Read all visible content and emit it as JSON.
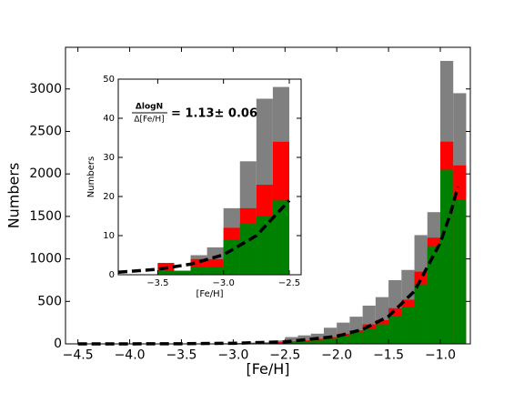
{
  "chart_data": [
    {
      "type": "histogram",
      "xlabel": "[Fe/H]",
      "ylabel": "Numbers",
      "bins": [
        -4.125,
        -4.0,
        -3.875,
        -3.75,
        -3.625,
        -3.5,
        -3.375,
        -3.25,
        -3.125,
        -3.0,
        -2.875,
        -2.75,
        -2.625,
        -2.5,
        -2.375,
        -2.25,
        -2.125,
        -2.0,
        -1.875,
        -1.75,
        -1.625,
        -1.5,
        -1.375,
        -1.25,
        -1.125,
        -1.0,
        -0.875,
        -0.75
      ],
      "series": [
        {
          "color": "#808080",
          "values": [
            1,
            2,
            1,
            2,
            3,
            3,
            2,
            5,
            7,
            10,
            15,
            20,
            40,
            80,
            100,
            120,
            190,
            250,
            320,
            450,
            550,
            750,
            870,
            1280,
            1550,
            3330,
            2950
          ]
        },
        {
          "color": "#ff0000",
          "values": [
            1,
            1,
            1,
            1,
            2,
            3,
            1,
            4,
            4,
            6,
            8,
            10,
            20,
            30,
            40,
            60,
            80,
            120,
            160,
            230,
            280,
            420,
            520,
            850,
            1250,
            2380,
            2100
          ]
        },
        {
          "color": "#008000",
          "values": [
            0,
            1,
            0,
            1,
            1,
            1,
            1,
            2,
            2,
            3,
            5,
            5,
            10,
            20,
            30,
            40,
            60,
            90,
            130,
            180,
            230,
            330,
            430,
            700,
            1150,
            2050,
            1700
          ]
        }
      ],
      "lines": [
        {
          "color": "#000000",
          "x": [
            -4.5,
            -4.0,
            -3.5,
            -3.0,
            -2.5,
            -2.0,
            -1.75,
            -1.5,
            -1.25,
            -1.0,
            -0.9,
            -0.83
          ],
          "values": [
            0.1,
            0.5,
            2,
            7,
            24,
            88,
            170,
            324,
            620,
            1190,
            1540,
            1850
          ]
        }
      ],
      "xlim": [
        -4.62,
        -0.71
      ],
      "ylim": [
        0,
        3490
      ],
      "xticks": [
        {
          "value": -4.5,
          "label": "−4.5"
        },
        {
          "value": -4.0,
          "label": "−4.0"
        },
        {
          "value": -3.5,
          "label": "−3.5"
        },
        {
          "value": -3.0,
          "label": "−3.0"
        },
        {
          "value": -2.5,
          "label": "−2.5"
        },
        {
          "value": -2.0,
          "label": "−2.0"
        },
        {
          "value": -1.5,
          "label": "−1.5"
        },
        {
          "value": -1.0,
          "label": "−1.0"
        }
      ],
      "yticks": [
        0,
        500,
        1000,
        1500,
        2000,
        2500,
        3000
      ]
    },
    {
      "type": "histogram",
      "xlabel": "[Fe/H]",
      "ylabel": "Numbers",
      "bins": [
        -3.5,
        -3.375,
        -3.25,
        -3.125,
        -3.0,
        -2.875,
        -2.75,
        -2.625,
        -2.5
      ],
      "series": [
        {
          "color": "#808080",
          "values": [
            3,
            1,
            5,
            7,
            17,
            29,
            45,
            48
          ]
        },
        {
          "color": "#ff0000",
          "values": [
            3,
            1,
            4,
            4,
            12,
            17,
            23,
            34
          ]
        },
        {
          "color": "#008000",
          "values": [
            1,
            1,
            2,
            2,
            9,
            13,
            15,
            19
          ]
        }
      ],
      "lines": [
        {
          "color": "#000000",
          "x": [
            -3.8,
            -3.5,
            -3.25,
            -3.0,
            -2.75,
            -2.5
          ],
          "values": [
            0.65,
            1.4,
            2.7,
            5.1,
            10,
            19
          ]
        }
      ],
      "xlim": [
        -3.8,
        -2.41
      ],
      "ylim": [
        0,
        50
      ],
      "xticks": [
        {
          "value": -3.5,
          "label": "−3.5"
        },
        {
          "value": -3.0,
          "label": "−3.0"
        },
        {
          "value": -2.5,
          "label": "−2.5"
        }
      ],
      "yticks": [
        0,
        10,
        20,
        30,
        40,
        50
      ],
      "annotation": {
        "numerator": "ΔlogN",
        "denominator": "Δ[Fe/H]",
        "text": "= 1.13± 0.06"
      }
    }
  ]
}
